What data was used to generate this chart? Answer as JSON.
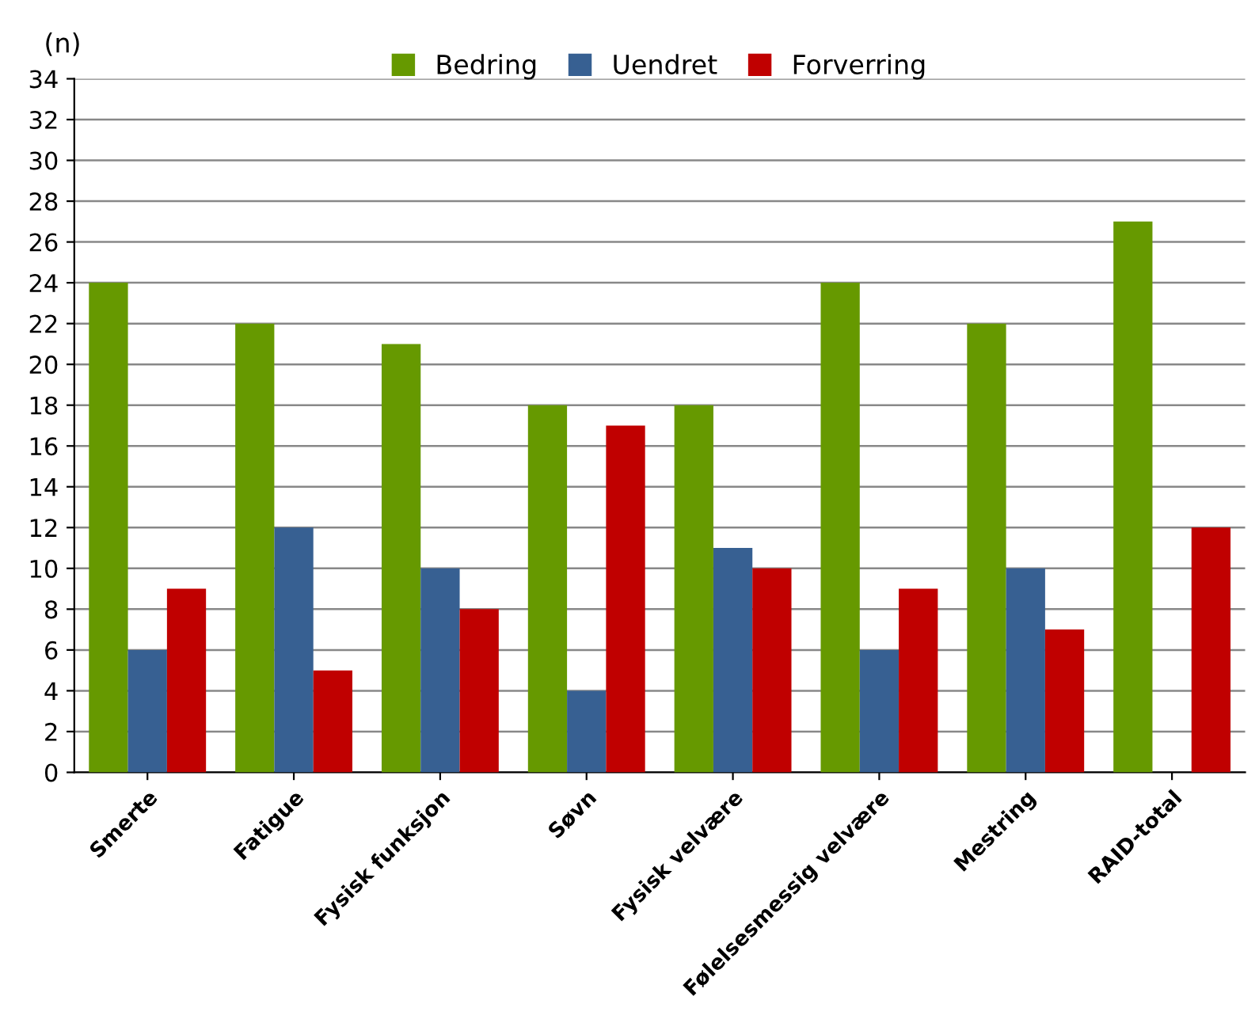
{
  "chart_data": {
    "type": "bar",
    "ylabel": "(n)",
    "categories": [
      "Smerte",
      "Fatigue",
      "Fysisk funksjon",
      "Søvn",
      "Fysisk velvære",
      "Følelsesmessig velvære",
      "Mestring",
      "RAID-total"
    ],
    "series": [
      {
        "name": "Bedring",
        "color": "#669900",
        "values": [
          24,
          22,
          21,
          18,
          18,
          24,
          22,
          27
        ]
      },
      {
        "name": "Uendret",
        "color": "#376092",
        "values": [
          6,
          12,
          10,
          4,
          11,
          6,
          10,
          0
        ]
      },
      {
        "name": "Forverring",
        "color": "#c00000",
        "values": [
          9,
          5,
          8,
          17,
          10,
          9,
          7,
          12
        ]
      }
    ],
    "ylim": [
      0,
      34
    ],
    "yticks": [
      0,
      2,
      4,
      6,
      8,
      10,
      12,
      14,
      16,
      18,
      20,
      22,
      24,
      26,
      28,
      30,
      32,
      34
    ],
    "grid": "y",
    "legend": "top"
  }
}
